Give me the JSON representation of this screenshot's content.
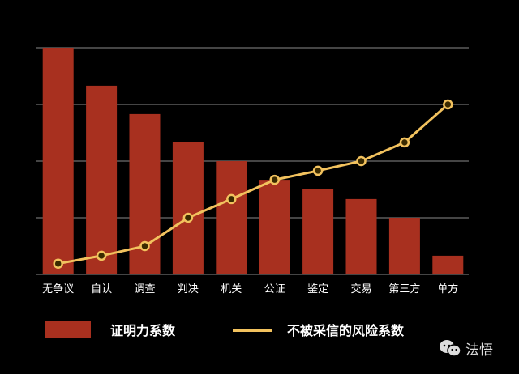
{
  "chart_data": {
    "type": "bar",
    "title": "",
    "xlabel": "",
    "ylabel": "",
    "ylim": [
      0,
      4
    ],
    "grid": true,
    "y_ticks_labeled": false,
    "categories": [
      "无争议",
      "自认",
      "调查",
      "判决",
      "机关",
      "公证",
      "鉴定",
      "交易",
      "第三方",
      "单方"
    ],
    "series": [
      {
        "name": "证明力系数",
        "type": "bar",
        "color": "#a8301f",
        "values": [
          4.0,
          3.33,
          2.83,
          2.33,
          2.0,
          1.67,
          1.5,
          1.33,
          1.0,
          0.33
        ]
      },
      {
        "name": "不被采信的风险系数",
        "type": "line",
        "color": "#f2c25e",
        "values": [
          0.19,
          0.33,
          0.5,
          1.0,
          1.33,
          1.67,
          1.83,
          2.0,
          2.33,
          3.0
        ]
      }
    ],
    "legend_position": "bottom"
  },
  "legend": {
    "bar_label": "证明力系数",
    "line_label": "不被采信的风险系数"
  },
  "watermark": {
    "icon": "wechat-icon",
    "text": "法悟"
  },
  "colors": {
    "background": "#000000",
    "bar": "#a8301f",
    "line": "#f2c25e",
    "grid": "#8a8a8a"
  }
}
